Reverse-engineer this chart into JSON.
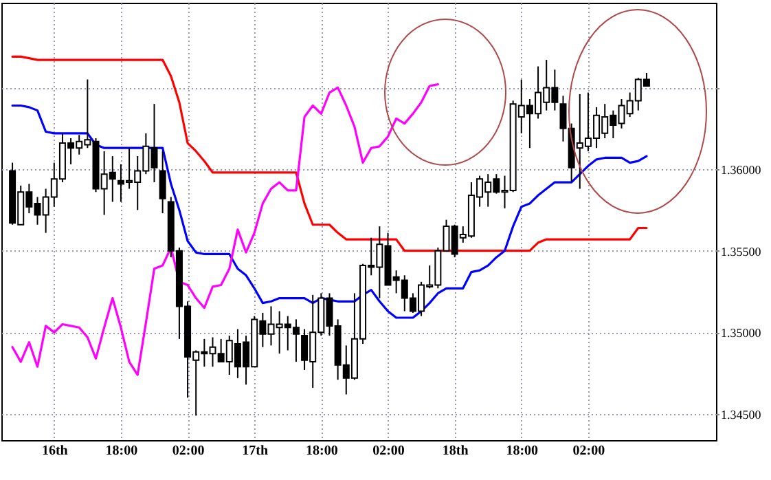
{
  "chart_data": {
    "type": "candlestick",
    "categories": [
      null,
      null,
      null,
      null,
      null,
      "16th",
      null,
      null,
      null,
      null,
      null,
      null,
      null,
      "18:00",
      null,
      null,
      null,
      null,
      null,
      null,
      null,
      "02:00",
      null,
      null,
      null,
      null,
      null,
      null,
      null,
      "17th",
      null,
      null,
      null,
      null,
      null,
      null,
      null,
      "18:00",
      null,
      null,
      null,
      null,
      null,
      null,
      null,
      "02:00",
      null,
      null,
      null,
      null,
      null,
      null,
      null,
      "18th",
      null,
      null,
      null,
      null,
      null,
      null,
      null,
      "18:00",
      null,
      null,
      null,
      null,
      null,
      null,
      null,
      "02:00",
      null,
      null,
      null,
      null,
      null,
      null,
      null,
      null,
      null,
      null,
      null,
      null,
      null,
      null
    ],
    "ohlc": [
      [
        1.3599,
        1.3604,
        1.3566,
        1.3567
      ],
      [
        1.3566,
        1.359,
        1.3566,
        1.3586
      ],
      [
        1.3586,
        1.3591,
        1.3573,
        1.3577
      ],
      [
        1.3579,
        1.3583,
        1.3566,
        1.3572
      ],
      [
        1.3572,
        1.3588,
        1.3561,
        1.3583
      ],
      [
        1.3583,
        1.3604,
        1.3577,
        1.3594
      ],
      [
        1.3594,
        1.3622,
        1.3592,
        1.3616
      ],
      [
        1.3616,
        1.3619,
        1.3603,
        1.3613
      ],
      [
        1.3613,
        1.3621,
        1.3609,
        1.3617
      ],
      [
        1.3615,
        1.3655,
        1.3613,
        1.3618
      ],
      [
        1.3617,
        1.3619,
        1.3586,
        1.3588
      ],
      [
        1.3588,
        1.3611,
        1.3572,
        1.3597
      ],
      [
        1.3598,
        1.3608,
        1.358,
        1.3594
      ],
      [
        1.3593,
        1.3603,
        1.358,
        1.3591
      ],
      [
        1.3592,
        1.3613,
        1.3588,
        1.3593
      ],
      [
        1.3592,
        1.3608,
        1.3575,
        1.3599
      ],
      [
        1.3599,
        1.3622,
        1.3597,
        1.3614
      ],
      [
        1.3613,
        1.364,
        1.3592,
        1.3601
      ],
      [
        1.3599,
        1.3611,
        1.3573,
        1.3582
      ],
      [
        1.358,
        1.3583,
        1.3546,
        1.355
      ],
      [
        1.355,
        1.3552,
        1.3496,
        1.3516
      ],
      [
        1.3516,
        1.3519,
        1.346,
        1.3485
      ],
      [
        1.3483,
        1.3489,
        1.3449,
        1.3488
      ],
      [
        1.3488,
        1.3496,
        1.3479,
        1.3487
      ],
      [
        1.3487,
        1.3497,
        1.3479,
        1.3491
      ],
      [
        1.3487,
        1.3496,
        1.3482,
        1.3482
      ],
      [
        1.3482,
        1.3498,
        1.3474,
        1.3495
      ],
      [
        1.3493,
        1.3502,
        1.3472,
        1.3479
      ],
      [
        1.3494,
        1.3498,
        1.3468,
        1.3479
      ],
      [
        1.3479,
        1.351,
        1.3479,
        1.3508
      ],
      [
        1.3507,
        1.3512,
        1.3491,
        1.3499
      ],
      [
        1.3499,
        1.3516,
        1.3492,
        1.3505
      ],
      [
        1.3503,
        1.3513,
        1.3487,
        1.3505
      ],
      [
        1.3505,
        1.351,
        1.3489,
        1.3503
      ],
      [
        1.3503,
        1.3508,
        1.3482,
        1.3499
      ],
      [
        1.3498,
        1.3502,
        1.3477,
        1.3483
      ],
      [
        1.3482,
        1.3523,
        1.3466,
        1.35
      ],
      [
        1.35,
        1.3524,
        1.3498,
        1.3521
      ],
      [
        1.3521,
        1.3524,
        1.3498,
        1.3504
      ],
      [
        1.3504,
        1.3508,
        1.3471,
        1.348
      ],
      [
        1.348,
        1.3492,
        1.3462,
        1.3472
      ],
      [
        1.3472,
        1.3524,
        1.3471,
        1.3496
      ],
      [
        1.3496,
        1.3542,
        1.3493,
        1.3541
      ],
      [
        1.3541,
        1.3558,
        1.3535,
        1.354
      ],
      [
        1.354,
        1.3565,
        1.3521,
        1.3554
      ],
      [
        1.3553,
        1.3561,
        1.3529,
        1.3529
      ],
      [
        1.3534,
        1.3538,
        1.3524,
        1.3532
      ],
      [
        1.3532,
        1.3535,
        1.3513,
        1.3521
      ],
      [
        1.3521,
        1.3524,
        1.3512,
        1.3513
      ],
      [
        1.3513,
        1.3531,
        1.351,
        1.3529
      ],
      [
        1.3528,
        1.3541,
        1.3527,
        1.3529
      ],
      [
        1.3529,
        1.3552,
        1.3527,
        1.355
      ],
      [
        1.355,
        1.3569,
        1.355,
        1.3565
      ],
      [
        1.3565,
        1.3566,
        1.3546,
        1.3548
      ],
      [
        1.3558,
        1.3565,
        1.3555,
        1.356
      ],
      [
        1.3559,
        1.3592,
        1.3558,
        1.3584
      ],
      [
        1.3583,
        1.3596,
        1.3577,
        1.3594
      ],
      [
        1.3586,
        1.3597,
        1.3577,
        1.3592
      ],
      [
        1.3594,
        1.3597,
        1.3585,
        1.3586
      ],
      [
        1.3586,
        1.3596,
        1.3576,
        1.3587
      ],
      [
        1.3587,
        1.3642,
        1.3586,
        1.364
      ],
      [
        1.3632,
        1.3655,
        1.3622,
        1.3639
      ],
      [
        1.3639,
        1.3643,
        1.3613,
        1.3634
      ],
      [
        1.3634,
        1.3663,
        1.3631,
        1.3647
      ],
      [
        1.3641,
        1.3667,
        1.3636,
        1.365
      ],
      [
        1.365,
        1.3661,
        1.3636,
        1.3641
      ],
      [
        1.364,
        1.3645,
        1.3617,
        1.3625
      ],
      [
        1.3625,
        1.3628,
        1.3592,
        1.3601
      ],
      [
        1.3613,
        1.3646,
        1.3588,
        1.3616
      ],
      [
        1.3614,
        1.3647,
        1.3611,
        1.3619
      ],
      [
        1.3619,
        1.3638,
        1.3613,
        1.3633
      ],
      [
        1.3622,
        1.364,
        1.3619,
        1.3632
      ],
      [
        1.3633,
        1.3636,
        1.3619,
        1.3627
      ],
      [
        1.3628,
        1.3643,
        1.3625,
        1.3639
      ],
      [
        1.3634,
        1.3647,
        1.3632,
        1.3642
      ],
      [
        1.3642,
        1.3656,
        1.3636,
        1.3655
      ],
      [
        1.3655,
        1.3659,
        1.3651,
        1.3651
      ],
      null,
      null,
      null,
      null,
      null,
      null,
      null
    ],
    "series": [
      {
        "type": "line",
        "color": "#ff0000",
        "values": [
          1.3669,
          1.3669,
          1.3668,
          1.3667,
          1.3667,
          1.3667,
          1.3667,
          1.3667,
          1.3667,
          1.3667,
          1.3667,
          1.3667,
          1.3667,
          1.3667,
          1.3667,
          1.3667,
          1.3667,
          1.3667,
          1.3667,
          1.3657,
          1.3641,
          1.3616,
          1.3611,
          1.3605,
          1.3598,
          1.3598,
          1.3598,
          1.3598,
          1.3598,
          1.3598,
          1.3598,
          1.3598,
          1.3598,
          1.3598,
          1.3598,
          1.3579,
          1.3566,
          1.3566,
          1.3566,
          1.3561,
          1.3557,
          1.3557,
          1.3557,
          1.3557,
          1.3557,
          1.3557,
          1.3557,
          1.355,
          1.355,
          1.355,
          1.355,
          1.355,
          1.355,
          1.355,
          1.355,
          1.355,
          1.355,
          1.355,
          1.355,
          1.355,
          1.355,
          1.355,
          1.355,
          1.3555,
          1.3557,
          1.3557,
          1.3557,
          1.3557,
          1.3557,
          1.3557,
          1.3557,
          1.3557,
          1.3557,
          1.3557,
          1.3557,
          1.3564,
          1.3564,
          null,
          null,
          null,
          null,
          null,
          null,
          null
        ]
      },
      {
        "type": "line",
        "color": "#0000ff",
        "values": [
          1.3639,
          1.3639,
          1.3638,
          1.3636,
          1.3623,
          1.3622,
          1.3622,
          1.3622,
          1.3622,
          1.3622,
          1.3615,
          1.3613,
          1.3613,
          1.3613,
          1.3613,
          1.3613,
          1.3613,
          1.3613,
          1.3613,
          1.3591,
          1.3575,
          1.3556,
          1.3549,
          1.3548,
          1.3548,
          1.3548,
          1.3548,
          1.3539,
          1.3535,
          1.3527,
          1.3518,
          1.3519,
          1.3521,
          1.3521,
          1.3521,
          1.3521,
          1.3518,
          1.3521,
          1.352,
          1.3519,
          1.3519,
          1.3519,
          1.3523,
          1.3526,
          1.3519,
          1.3513,
          1.3509,
          1.3509,
          1.3509,
          1.3513,
          1.3518,
          1.3524,
          1.3527,
          1.3527,
          1.3527,
          1.3537,
          1.3538,
          1.3541,
          1.3546,
          1.355,
          1.3565,
          1.3577,
          1.3579,
          1.3584,
          1.3588,
          1.3592,
          1.3592,
          1.3592,
          1.3597,
          1.3602,
          1.3606,
          1.3607,
          1.3607,
          1.3607,
          1.3604,
          1.3605,
          1.3608,
          null,
          null,
          null,
          null,
          null,
          null,
          null
        ]
      },
      {
        "type": "line",
        "color": "#ff00ff",
        "values": [
          1.3491,
          1.3482,
          1.3494,
          1.3479,
          1.3504,
          1.35,
          1.3505,
          1.3504,
          1.3503,
          1.3497,
          1.3484,
          1.3503,
          1.3521,
          1.3503,
          1.3482,
          1.3474,
          1.3506,
          1.3539,
          1.3541,
          1.3552,
          1.3531,
          1.3529,
          1.3521,
          1.3515,
          1.3528,
          1.3529,
          1.3539,
          1.3563,
          1.3549,
          1.3561,
          1.3579,
          1.3588,
          1.3592,
          1.3587,
          1.3587,
          1.3632,
          1.3639,
          1.3634,
          1.3647,
          1.365,
          1.3639,
          1.3626,
          1.3604,
          1.3613,
          1.3614,
          1.362,
          1.3631,
          1.3628,
          1.3634,
          1.3641,
          1.3651,
          1.3652,
          null,
          null,
          null,
          null,
          null,
          null,
          null,
          null,
          null,
          null,
          null,
          null,
          null,
          null,
          null,
          null,
          null,
          null,
          null,
          null,
          null,
          null,
          null,
          null,
          null,
          null,
          null,
          null,
          null,
          null,
          null,
          null
        ]
      }
    ],
    "ylim": [
      1.3434,
      1.3702
    ],
    "yticks": [
      {
        "value": 1.345,
        "label": "1.34500"
      },
      {
        "value": 1.35,
        "label": "1.35000"
      },
      {
        "value": 1.355,
        "label": "1.35500"
      },
      {
        "value": 1.36,
        "label": "1.36000"
      },
      {
        "value": 1.365,
        "label": null
      }
    ],
    "grid": true
  }
}
